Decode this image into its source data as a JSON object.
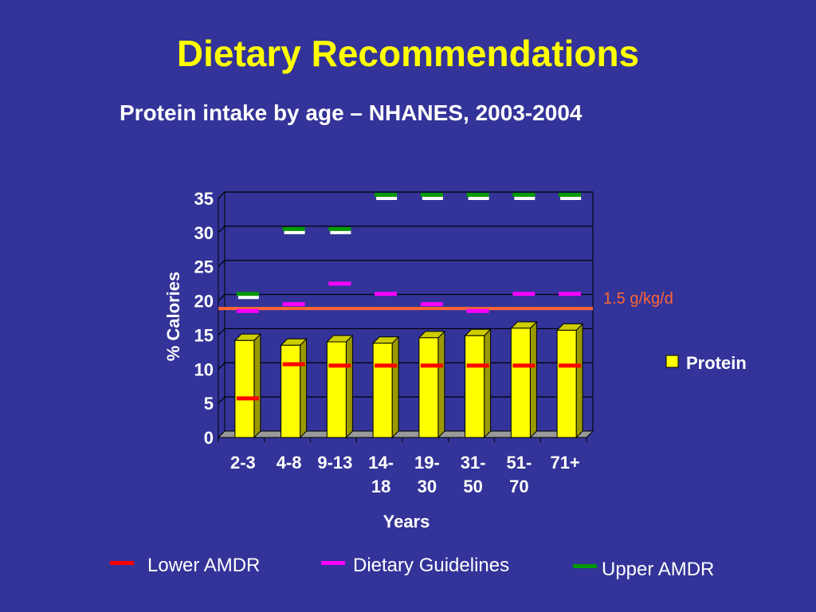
{
  "title": "Dietary Recommendations",
  "subtitle": "Protein intake by age – NHANES, 2003-2004",
  "chart_data": {
    "type": "bar",
    "categories": [
      [
        "2-3"
      ],
      [
        "4-8"
      ],
      [
        "9-13"
      ],
      [
        "14-",
        "18"
      ],
      [
        "19-",
        "30"
      ],
      [
        "31-",
        "50"
      ],
      [
        "51-",
        "70"
      ],
      [
        "71+"
      ]
    ],
    "series": [
      {
        "name": "Protein",
        "values": [
          14.2,
          13.5,
          14.0,
          13.8,
          14.6,
          14.9,
          16.0,
          15.7
        ],
        "color": "#ffff00"
      }
    ],
    "markers": {
      "lower_amdr": {
        "values": [
          5.2,
          10.2,
          10.0,
          10.0,
          10.0,
          10.0,
          10.0,
          10.0
        ],
        "color": "#ff0000"
      },
      "dietary_guidelines": {
        "values": [
          18.0,
          19.0,
          22.0,
          20.5,
          19.0,
          18.0,
          20.5,
          20.5
        ],
        "color": "#ff00ff"
      },
      "upper_amdr": {
        "values": [
          20.5,
          30.0,
          30.0,
          35.0,
          35.0,
          35.0,
          35.0,
          35.0
        ],
        "color": "#009900"
      }
    },
    "reference_line": {
      "value": 18.3,
      "label": "1.5 g/kg/d",
      "color": "#ff6633"
    },
    "yticks": [
      0,
      5,
      10,
      15,
      20,
      25,
      30,
      35
    ],
    "ylim": [
      0,
      35
    ],
    "xlabel": "Years",
    "ylabel": "% Calories",
    "grid": true,
    "legend_series": "Protein",
    "legend_bottom": [
      {
        "label": "Lower AMDR",
        "color": "#ff0000"
      },
      {
        "label": "Dietary Guidelines",
        "color": "#ff00ff"
      },
      {
        "label": "Upper AMDR",
        "color": "#009900"
      }
    ]
  }
}
